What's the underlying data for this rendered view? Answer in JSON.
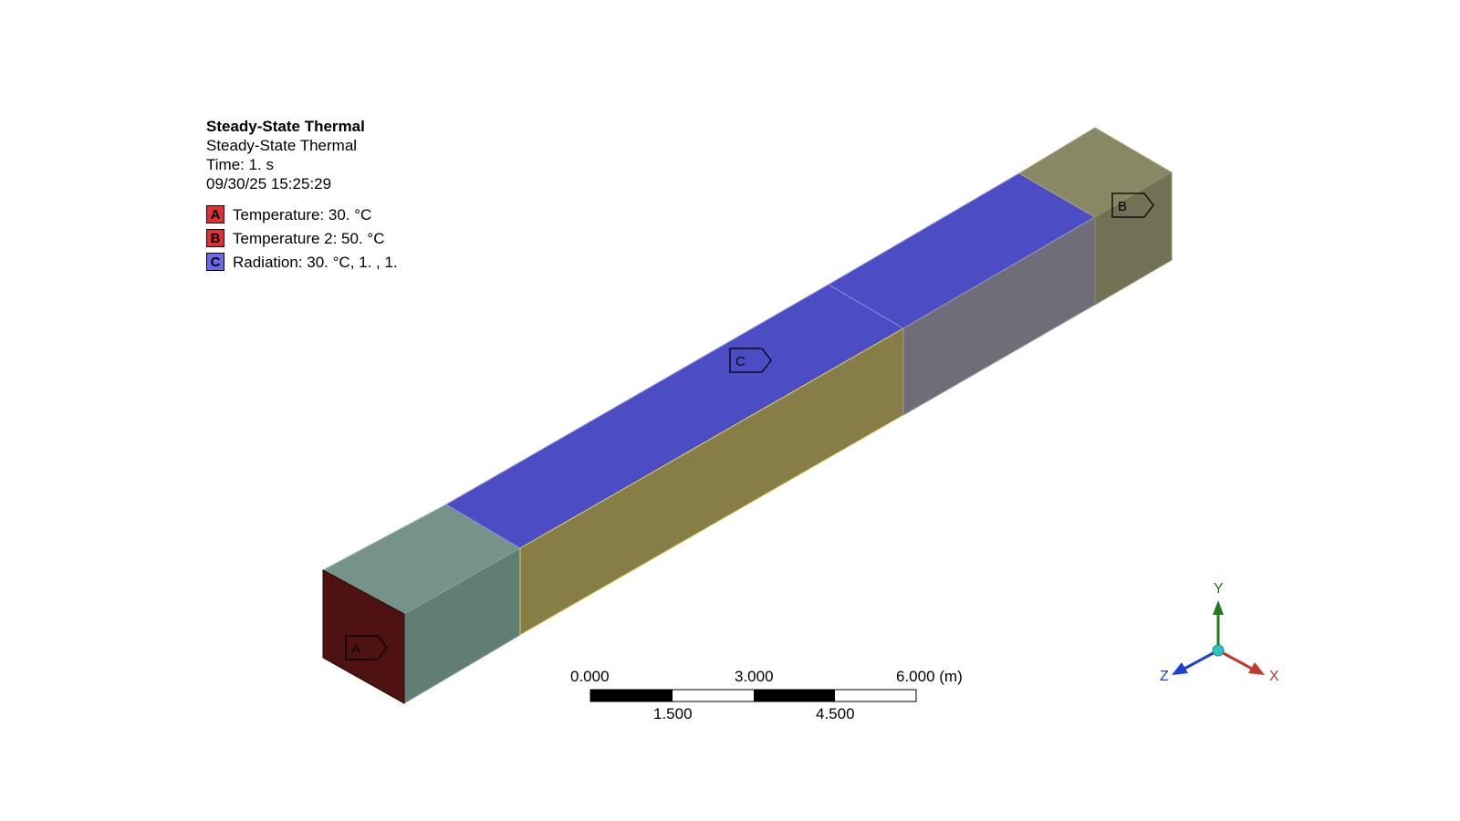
{
  "analysis": {
    "title": "Steady-State Thermal",
    "subtitle": "Steady-State Thermal",
    "time": "Time: 1. s",
    "timestamp": "09/30/25 15:25:29"
  },
  "loads": [
    {
      "key": "A",
      "label": "Temperature: 30. °C",
      "color": "#e03030"
    },
    {
      "key": "B",
      "label": "Temperature 2: 50. °C",
      "color": "#e03030"
    },
    {
      "key": "C",
      "label": "Radiation: 30. °C, 1.  , 1.",
      "color": "#6a6af0"
    }
  ],
  "scale_bar": {
    "top_labels": [
      "0.000",
      "3.000",
      "6.000 (m)"
    ],
    "bottom_labels": [
      "1.500",
      "4.500"
    ]
  },
  "triad": {
    "y_label": "Y",
    "x_label": "X",
    "z_label": "Z",
    "colors": {
      "x": "#c0392b",
      "y": "#1e7b1e",
      "z": "#1f3fd0",
      "origin": "#2ec4c4"
    }
  },
  "body_colors": {
    "end_face_a": "#4f1212",
    "end_segment_top": "#76938a",
    "end_segment_side": "#617e75",
    "radiation_top": "#4c4cc4",
    "mid_side": "#877e47",
    "far_side_segment": "#6e6d78",
    "end_b_top": "#898864",
    "end_b_side": "#727155"
  },
  "tags": {
    "a": "A",
    "b": "B",
    "c": "C"
  }
}
